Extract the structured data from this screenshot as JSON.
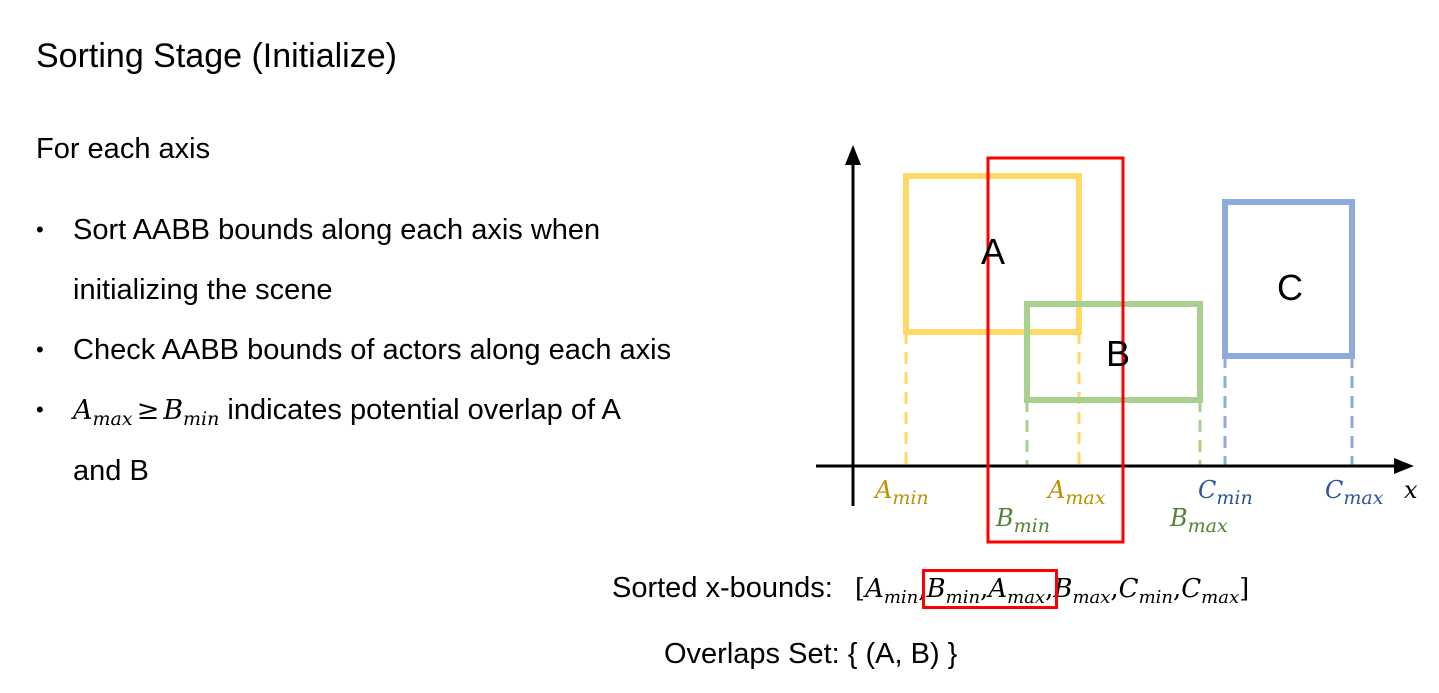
{
  "slide": {
    "title": "Sorting Stage (Initialize)",
    "intro": "For each axis",
    "bullets": [
      {
        "line1": "Sort AABB bounds along each axis when",
        "line2": "initializing the scene"
      },
      {
        "text": "Check AABB bounds of actors along each axis"
      },
      {
        "math_lhs_base": "A",
        "math_lhs_sub": "max",
        "math_op": "≥",
        "math_rhs_base": "B",
        "math_rhs_sub": "min",
        "line1_rest": " indicates potential overlap of A",
        "line2": "and B"
      }
    ]
  },
  "diagram": {
    "axis_label": "x",
    "boxes": [
      {
        "name": "A",
        "color": "#ffd966"
      },
      {
        "name": "B",
        "color": "#a9d18e"
      },
      {
        "name": "C",
        "color": "#8faadc"
      }
    ],
    "highlight_color": "#ff0000",
    "labels": [
      {
        "base": "A",
        "sub": "min",
        "color": "#bf9000"
      },
      {
        "base": "A",
        "sub": "max",
        "color": "#bf9000"
      },
      {
        "base": "B",
        "sub": "min",
        "color": "#548235"
      },
      {
        "base": "B",
        "sub": "max",
        "color": "#548235"
      },
      {
        "base": "C",
        "sub": "min",
        "color": "#2f5597"
      },
      {
        "base": "C",
        "sub": "max",
        "color": "#2f5597"
      }
    ]
  },
  "sorted": {
    "label": "Sorted x-bounds:",
    "open": "[",
    "close": "]",
    "separator": ",",
    "items": [
      {
        "base": "A",
        "sub": "min"
      },
      {
        "base": "B",
        "sub": "min"
      },
      {
        "base": "A",
        "sub": "max"
      },
      {
        "base": "B",
        "sub": "max"
      },
      {
        "base": "C",
        "sub": "min"
      },
      {
        "base": "C",
        "sub": "max"
      }
    ]
  },
  "overlaps": {
    "text": "Overlaps Set: { (A, B) }"
  }
}
